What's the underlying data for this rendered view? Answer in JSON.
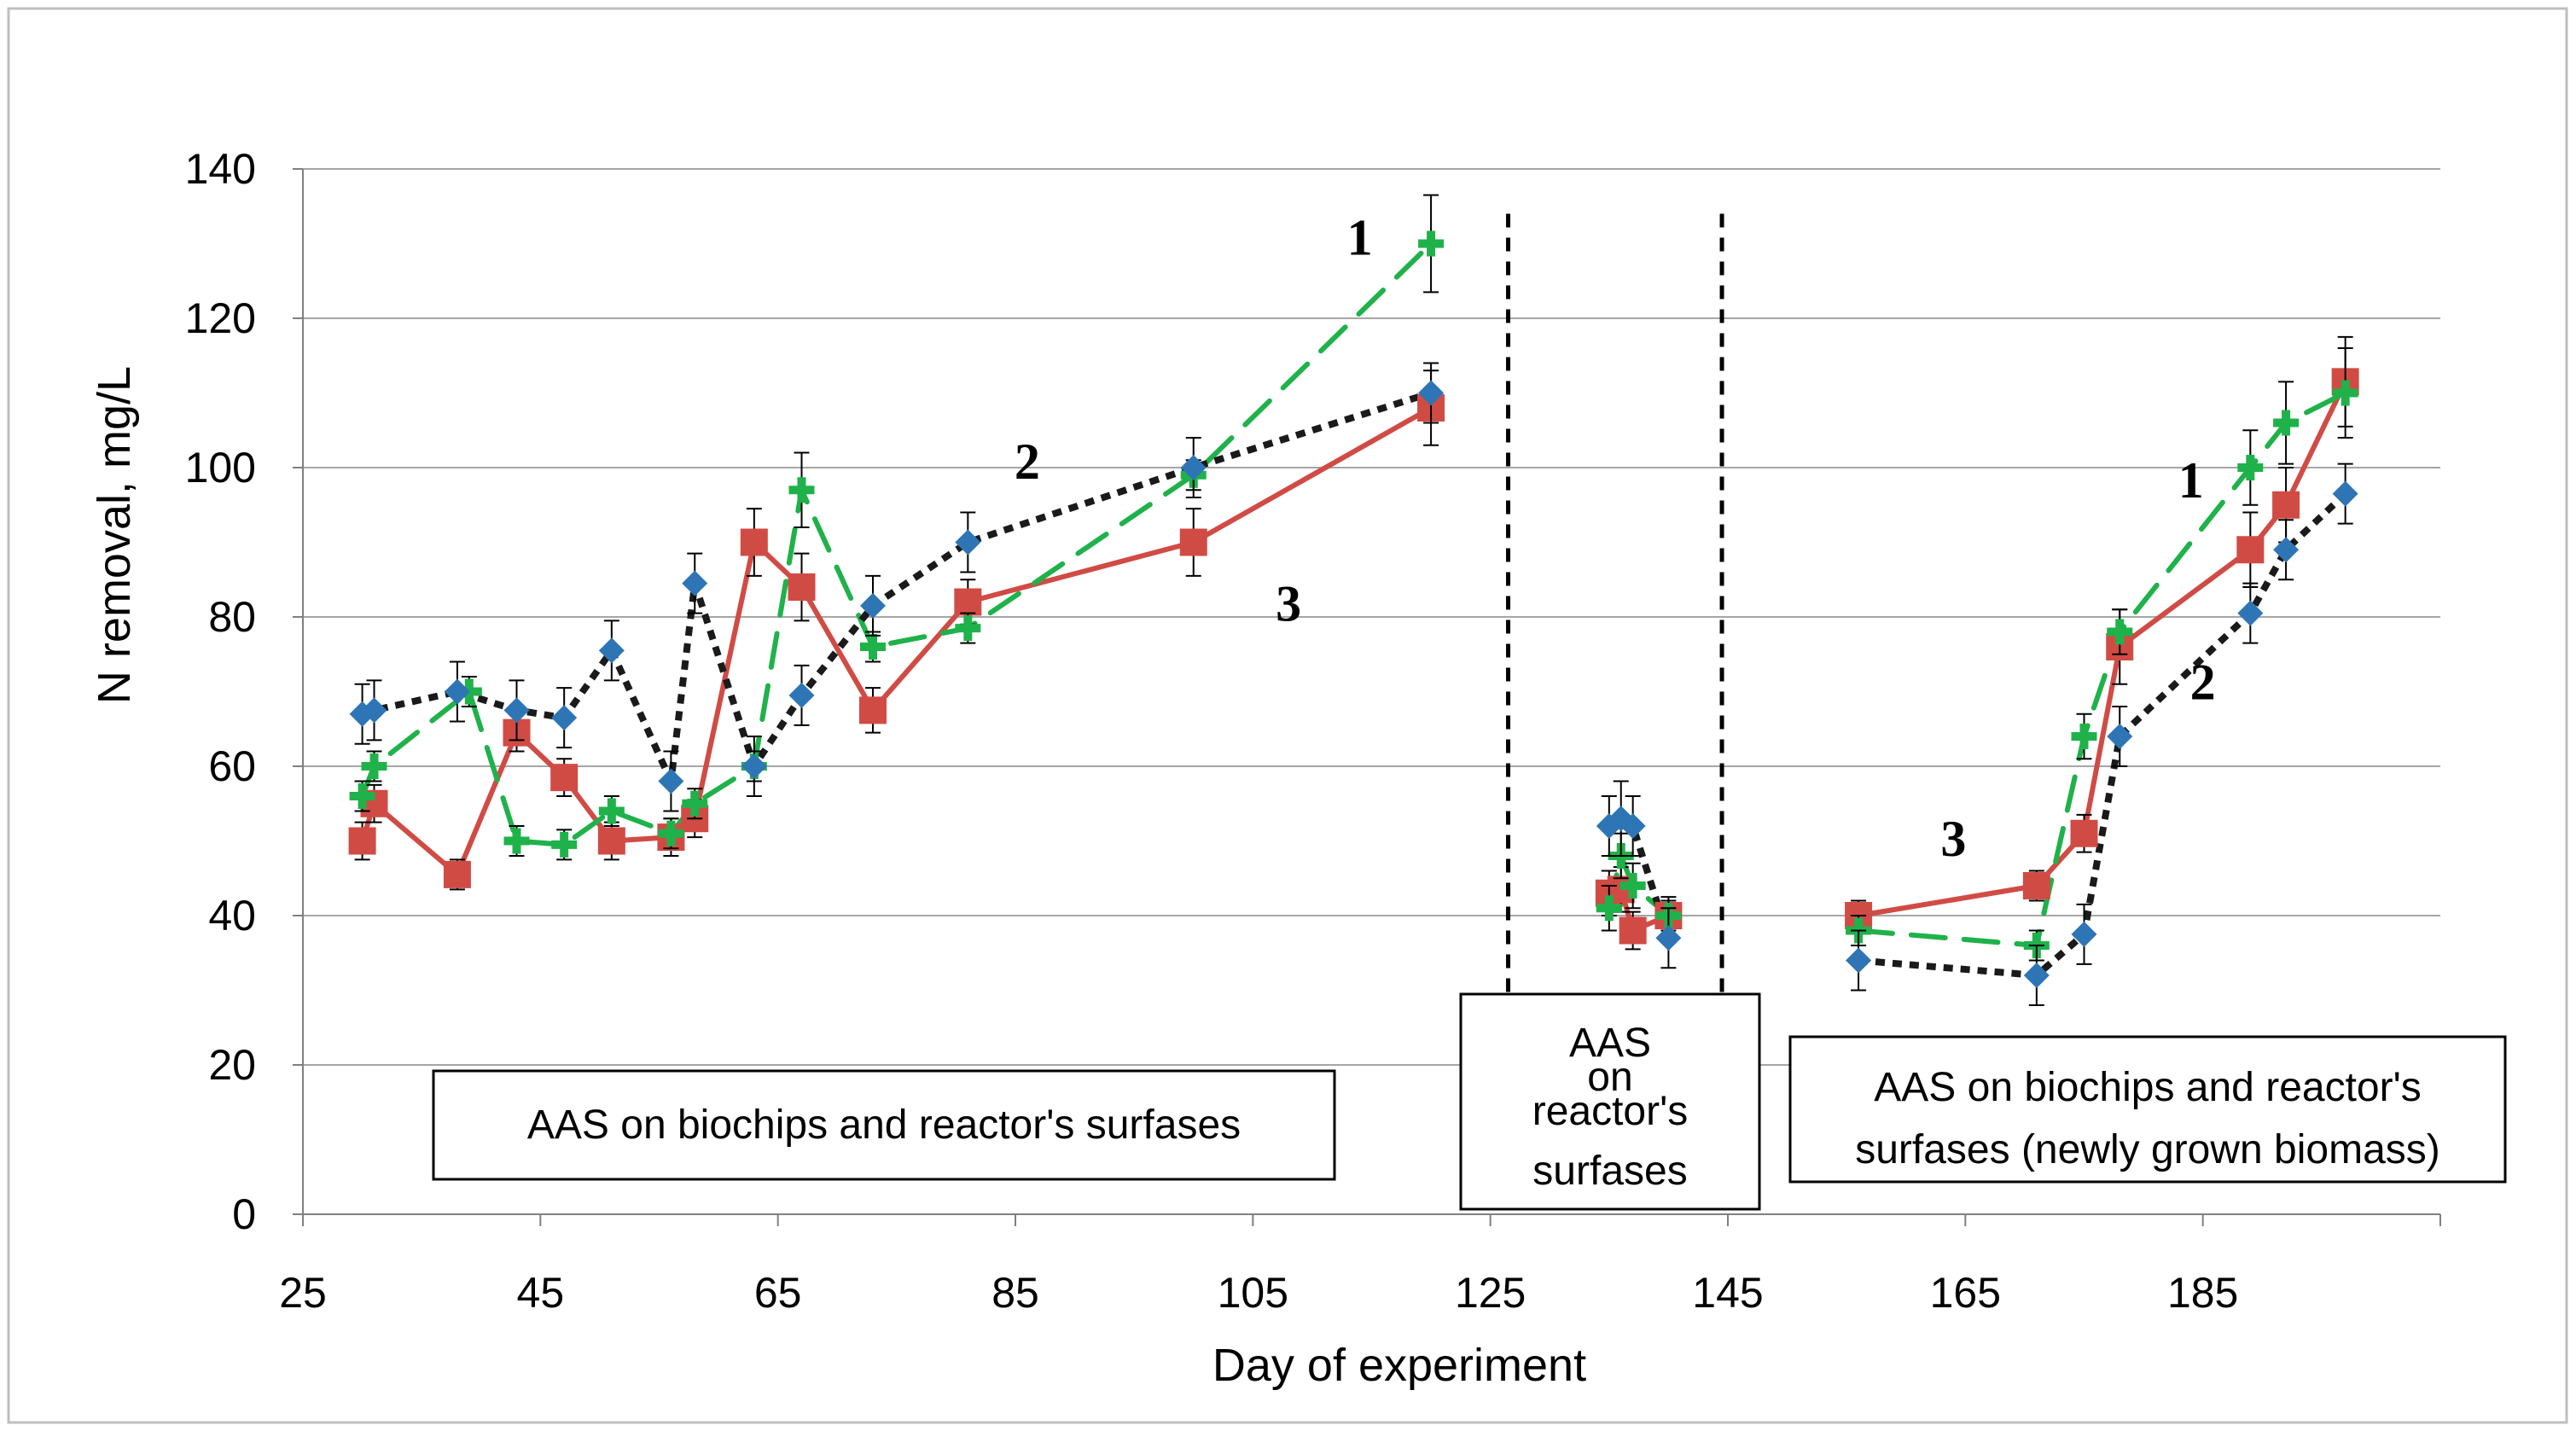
{
  "chart_data": {
    "type": "line",
    "title": "",
    "xlabel": "Day of experiment",
    "ylabel": "N removal, mg/L",
    "xlim": [
      25,
      205
    ],
    "ylim": [
      0,
      140
    ],
    "xticks": [
      25,
      45,
      65,
      85,
      105,
      125,
      145,
      165,
      185
    ],
    "yticks": [
      0,
      20,
      40,
      60,
      80,
      100,
      120,
      140
    ],
    "grid": true,
    "series": [
      {
        "name": "1",
        "color": "#1fb24a",
        "marker": "plus",
        "dash": "dashed",
        "segments": [
          [
            [
              30,
              56
            ],
            [
              31,
              60
            ],
            [
              39,
              70
            ],
            [
              43,
              50
            ],
            [
              47,
              49.5
            ],
            [
              51,
              54
            ],
            [
              56,
              51
            ],
            [
              58,
              55
            ],
            [
              63,
              60
            ],
            [
              67,
              97
            ],
            [
              73,
              76
            ],
            [
              81,
              78.5
            ],
            [
              100,
              99
            ],
            [
              120,
              130
            ]
          ],
          [
            [
              135,
              41
            ],
            [
              136,
              48
            ],
            [
              137,
              44
            ],
            [
              140,
              40
            ]
          ],
          [
            [
              156,
              38
            ],
            [
              171,
              36
            ],
            [
              175,
              64
            ],
            [
              178,
              78
            ],
            [
              189,
              100
            ],
            [
              192,
              106
            ],
            [
              197,
              110
            ]
          ]
        ],
        "errors": [
          [
            [
              30,
              2
            ],
            [
              31,
              2
            ],
            [
              39,
              2
            ],
            [
              43,
              2
            ],
            [
              47,
              2
            ],
            [
              51,
              2
            ],
            [
              56,
              2
            ],
            [
              58,
              2
            ],
            [
              63,
              2
            ],
            [
              67,
              5
            ],
            [
              73,
              2
            ],
            [
              81,
              2
            ],
            [
              100,
              2
            ],
            [
              120,
              6.5
            ]
          ],
          [
            [
              135,
              3
            ],
            [
              136,
              3
            ],
            [
              137,
              3
            ],
            [
              140,
              2
            ]
          ],
          [
            [
              156,
              2
            ],
            [
              171,
              2
            ],
            [
              175,
              3
            ],
            [
              178,
              3
            ],
            [
              189,
              5
            ],
            [
              192,
              5.5
            ],
            [
              197,
              6
            ]
          ]
        ]
      },
      {
        "name": "2",
        "color": "#1a1a1a",
        "marker": "diamond",
        "markerColor": "#2e75b6",
        "dash": "dotted",
        "segments": [
          [
            [
              30,
              67
            ],
            [
              31,
              67.5
            ],
            [
              38,
              70
            ],
            [
              43,
              67.5
            ],
            [
              47,
              66.5
            ],
            [
              51,
              75.5
            ],
            [
              56,
              58
            ],
            [
              58,
              84.5
            ],
            [
              63,
              60
            ],
            [
              67,
              69.5
            ],
            [
              73,
              81.5
            ],
            [
              81,
              90
            ],
            [
              100,
              100
            ],
            [
              120,
              110
            ]
          ],
          [
            [
              135,
              52
            ],
            [
              136,
              53
            ],
            [
              137,
              52
            ],
            [
              140,
              37
            ]
          ],
          [
            [
              156,
              34
            ],
            [
              171,
              32
            ],
            [
              175,
              37.5
            ],
            [
              178,
              64
            ],
            [
              189,
              80.5
            ],
            [
              192,
              89
            ],
            [
              197,
              96.5
            ]
          ]
        ],
        "errors": [
          [
            [
              30,
              4
            ],
            [
              31,
              4
            ],
            [
              38,
              4
            ],
            [
              43,
              4
            ],
            [
              47,
              4
            ],
            [
              51,
              4
            ],
            [
              56,
              4
            ],
            [
              58,
              4
            ],
            [
              63,
              4
            ],
            [
              67,
              4
            ],
            [
              73,
              4
            ],
            [
              81,
              4
            ],
            [
              100,
              4
            ],
            [
              120,
              4
            ]
          ],
          [
            [
              135,
              4
            ],
            [
              136,
              5
            ],
            [
              137,
              4
            ],
            [
              140,
              4
            ]
          ],
          [
            [
              156,
              4
            ],
            [
              171,
              4
            ],
            [
              175,
              4
            ],
            [
              178,
              4
            ],
            [
              189,
              4
            ],
            [
              192,
              4
            ],
            [
              197,
              4
            ]
          ]
        ]
      },
      {
        "name": "3",
        "color": "#d14b45",
        "marker": "square",
        "dash": "solid",
        "segments": [
          [
            [
              30,
              50
            ],
            [
              31,
              55
            ],
            [
              38,
              45.5
            ],
            [
              43,
              64.5
            ],
            [
              47,
              58.5
            ],
            [
              51,
              50
            ],
            [
              56,
              50.5
            ],
            [
              58,
              53
            ],
            [
              63,
              90
            ],
            [
              67,
              84
            ],
            [
              73,
              67.5
            ],
            [
              81,
              82
            ],
            [
              100,
              90
            ],
            [
              120,
              108
            ]
          ],
          [
            [
              135,
              43
            ],
            [
              136,
              43.5
            ],
            [
              137,
              38
            ],
            [
              140,
              40
            ]
          ],
          [
            [
              156,
              40
            ],
            [
              171,
              44
            ],
            [
              175,
              51
            ],
            [
              178,
              76
            ],
            [
              189,
              89
            ],
            [
              192,
              95
            ],
            [
              197,
              111.5
            ]
          ]
        ],
        "errors": [
          [
            [
              30,
              2.5
            ],
            [
              31,
              2.5
            ],
            [
              38,
              2
            ],
            [
              43,
              2.5
            ],
            [
              47,
              2.5
            ],
            [
              51,
              2.5
            ],
            [
              56,
              2.5
            ],
            [
              58,
              2.5
            ],
            [
              63,
              4.5
            ],
            [
              67,
              4.5
            ],
            [
              73,
              3
            ],
            [
              81,
              3
            ],
            [
              100,
              4.5
            ],
            [
              120,
              5
            ]
          ],
          [
            [
              135,
              3
            ],
            [
              136,
              3
            ],
            [
              137,
              2.5
            ],
            [
              140,
              2.5
            ]
          ],
          [
            [
              156,
              2
            ],
            [
              171,
              2
            ],
            [
              175,
              2.5
            ],
            [
              178,
              5
            ],
            [
              189,
              5
            ],
            [
              192,
              5
            ],
            [
              197,
              6
            ]
          ]
        ]
      }
    ],
    "vlines": [
      126.5,
      144.5
    ],
    "annotations": [
      {
        "text": "1",
        "x": 114,
        "y": 128.5
      },
      {
        "text": "2",
        "x": 86,
        "y": 98.5
      },
      {
        "text": "3",
        "x": 108,
        "y": 79.5
      },
      {
        "text": "1",
        "x": 184,
        "y": 96
      },
      {
        "text": "2",
        "x": 185,
        "y": 69
      },
      {
        "text": "3",
        "x": 164,
        "y": 48
      }
    ],
    "boxes": [
      {
        "lines": [
          "AAS on biochips and reactor's surfases"
        ]
      },
      {
        "lines": [
          "AAS",
          "on",
          "reactor's",
          "surfases"
        ]
      },
      {
        "lines": [
          "AAS on biochips and reactor's",
          "surfases  (newly grown biomass)"
        ]
      }
    ]
  }
}
